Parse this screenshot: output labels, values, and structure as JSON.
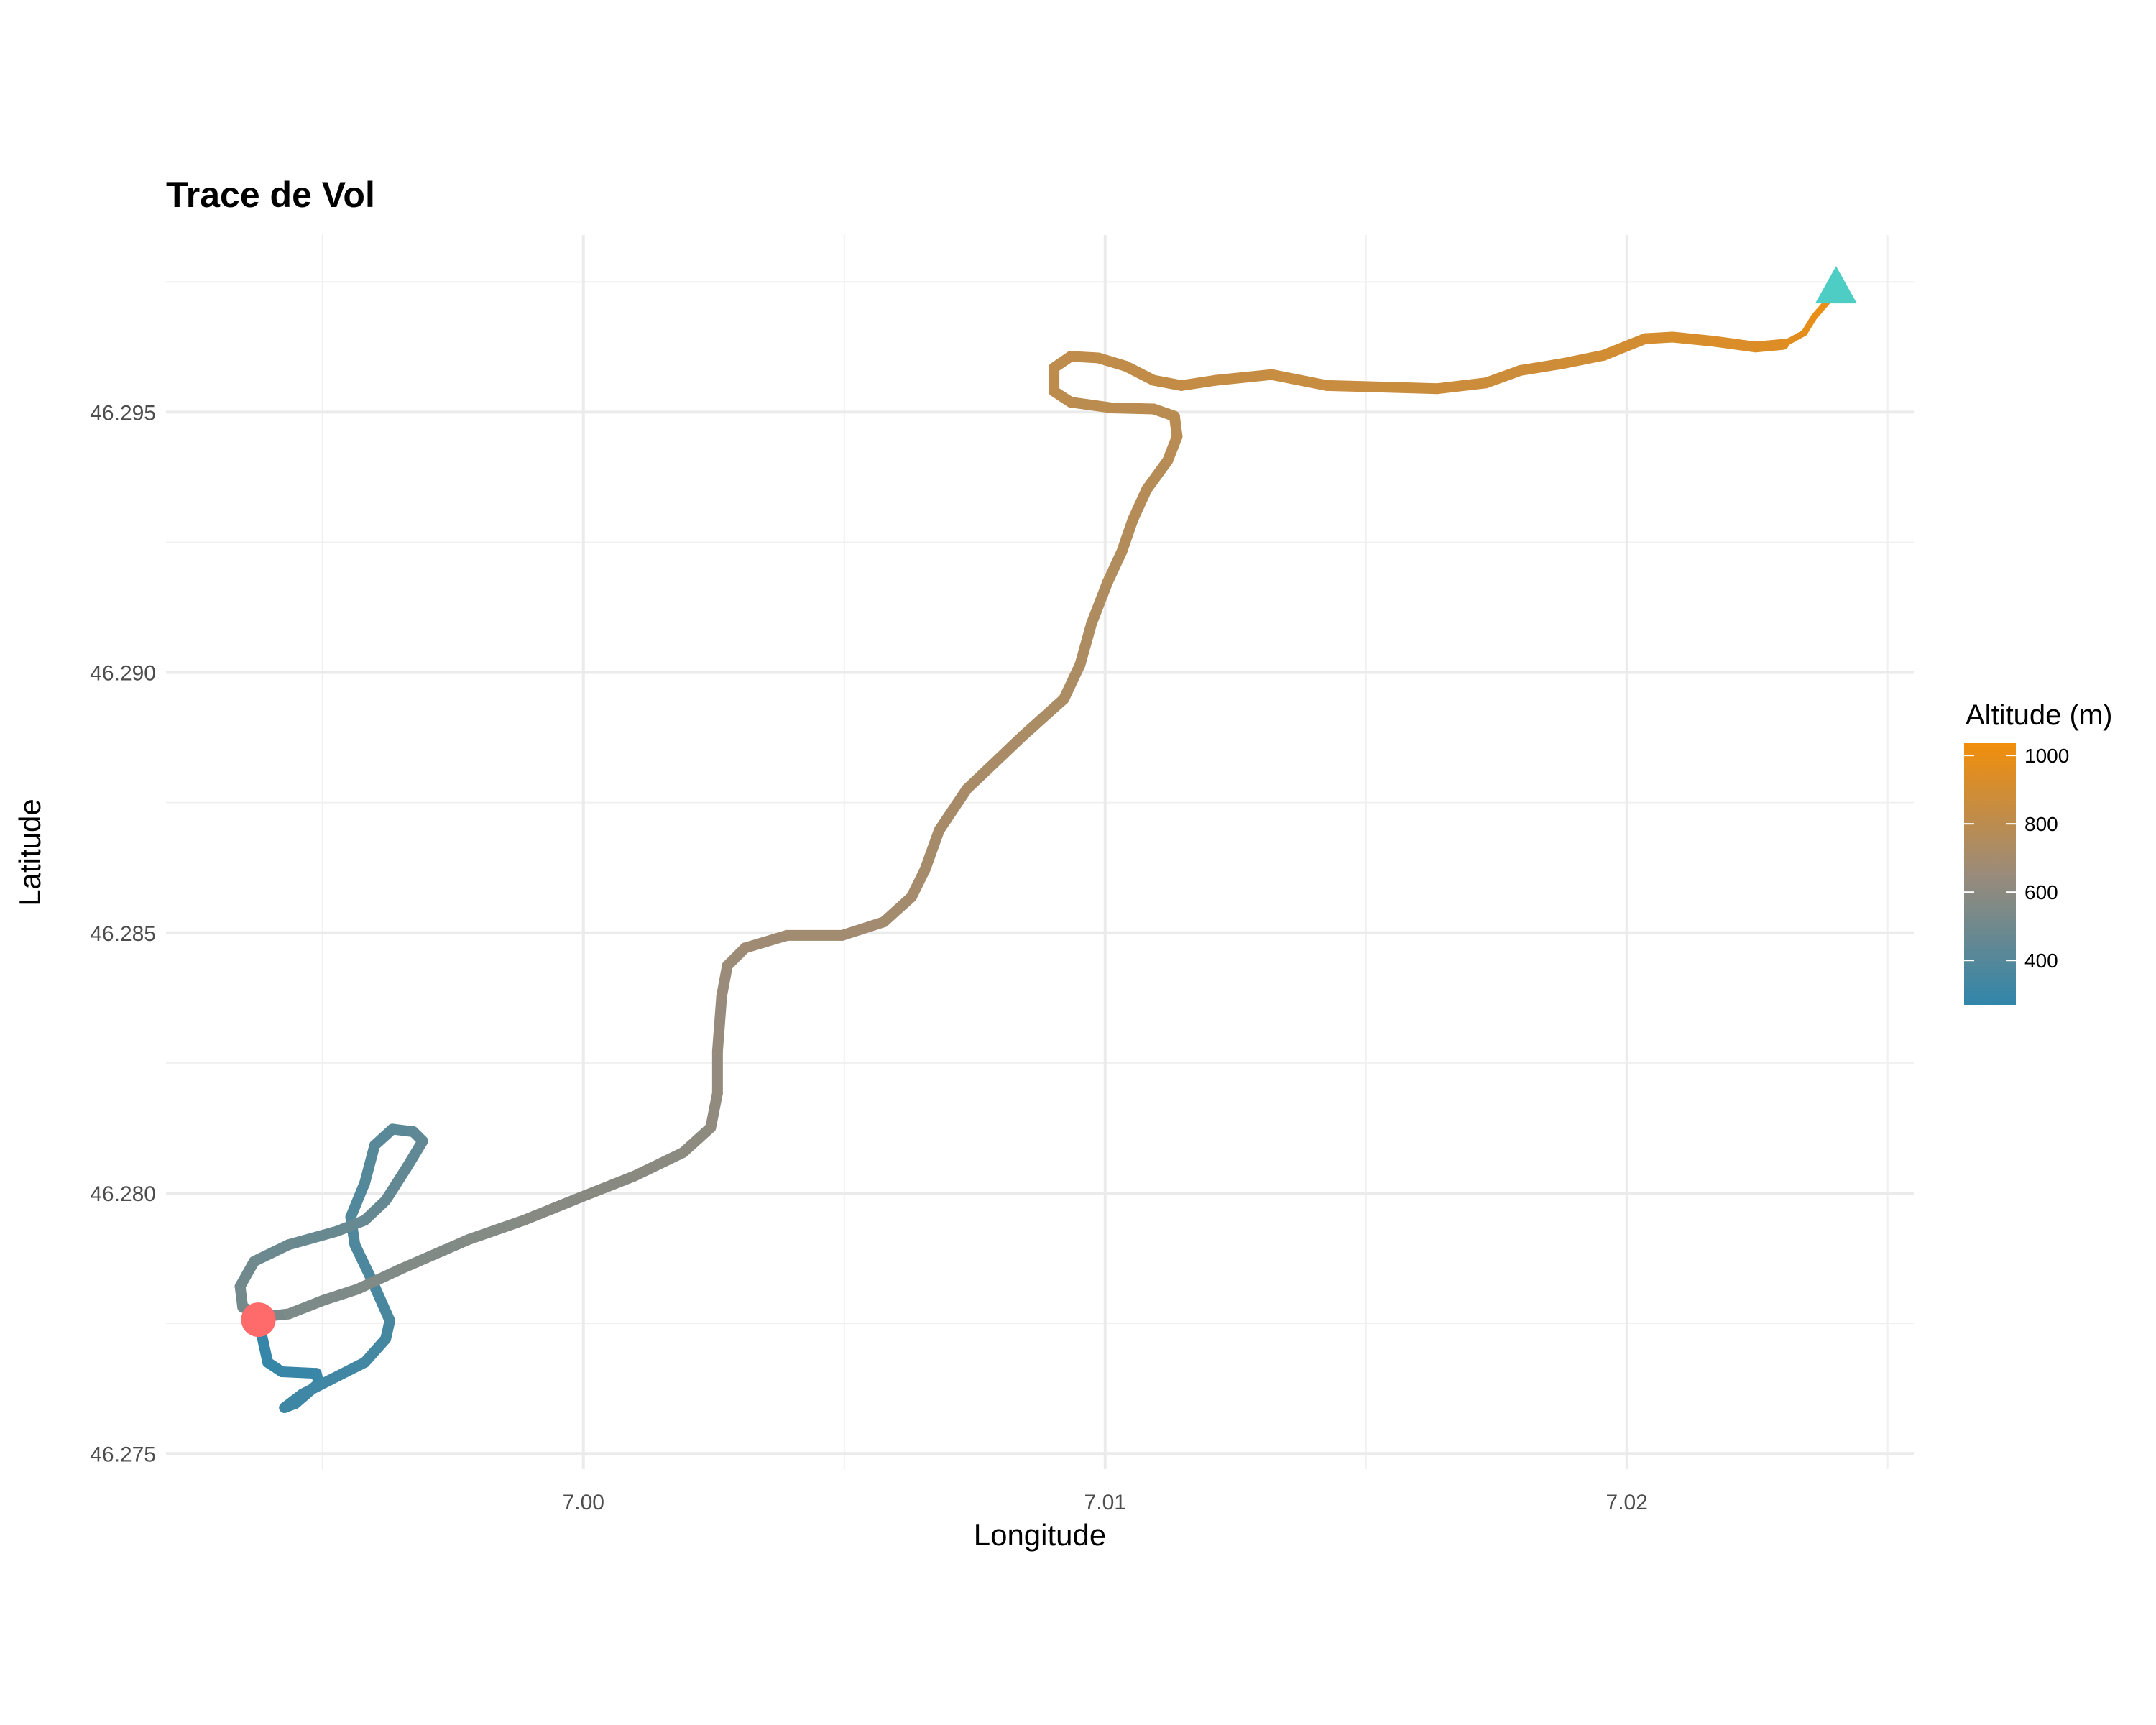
{
  "chart_data": {
    "type": "line",
    "title": "Trace de Vol",
    "xlabel": "Longitude",
    "ylabel": "Latitude",
    "xlim": [
      6.992,
      7.0255
    ],
    "ylim": [
      46.2747,
      46.2984
    ],
    "x_ticks": [
      7.0,
      7.01,
      7.02
    ],
    "x_tick_labels": [
      "7.00",
      "7.01",
      "7.02"
    ],
    "y_ticks": [
      46.275,
      46.28,
      46.285,
      46.29,
      46.295
    ],
    "y_tick_labels": [
      "46.275",
      "46.280",
      "46.285",
      "46.290",
      "46.295"
    ],
    "grid": true,
    "color_scale": {
      "title": "Altitude (m)",
      "limits": [
        270,
        1036
      ],
      "ticks": [
        400,
        600,
        800,
        1000
      ],
      "tick_labels": [
        "400",
        "600",
        "800",
        "1000"
      ],
      "colors": [
        "#3186AA",
        "#9A8B7A",
        "#F28E0A"
      ],
      "legend_position": "right"
    },
    "track": {
      "lon": [
        6.99377,
        6.99395,
        6.99422,
        6.99488,
        6.99493,
        6.99448,
        6.99427,
        6.99461,
        6.99514,
        6.99581,
        6.99621,
        6.99629,
        6.99594,
        6.99562,
        6.99554,
        6.99581,
        6.996,
        6.99634,
        6.99674,
        6.99692,
        6.9966,
        6.99621,
        6.99581,
        6.99528,
        6.99435,
        6.99369,
        6.99342,
        6.99347,
        6.99387,
        6.99435,
        6.99501,
        6.99568,
        6.99647,
        6.9978,
        6.99886,
        6.99992,
        7.00098,
        7.00191,
        7.00244,
        7.00257,
        7.00257,
        7.00265,
        7.00276,
        7.0031,
        7.0039,
        7.00496,
        7.00576,
        7.00629,
        7.00655,
        7.00682,
        7.00735,
        7.00841,
        7.00921,
        7.00952,
        7.00974,
        7.01005,
        7.01032,
        7.01053,
        7.0108,
        7.0112,
        7.01138,
        7.01133,
        7.01093,
        7.01013,
        7.00934,
        7.00902,
        7.00902,
        7.00934,
        7.00987,
        7.0104,
        7.01093,
        7.01146,
        7.01212,
        7.01319,
        7.01425,
        7.01531,
        7.01637,
        7.0173,
        7.01796,
        7.01876,
        7.01955,
        7.02035,
        7.02088,
        7.02167,
        7.02247,
        7.023,
        7.0234,
        7.02359,
        7.02385
      ],
      "lat": [
        46.27757,
        46.27675,
        46.27657,
        46.27654,
        46.27635,
        46.27596,
        46.27588,
        46.27614,
        46.27641,
        46.27675,
        46.2772,
        46.27755,
        46.27834,
        46.27901,
        46.27954,
        46.2802,
        46.28092,
        46.28123,
        46.28118,
        46.281,
        46.28047,
        46.27986,
        46.27948,
        46.27927,
        46.27901,
        46.27869,
        46.27821,
        46.27781,
        46.27763,
        46.27768,
        46.27794,
        46.27816,
        46.27853,
        46.27911,
        46.27948,
        46.27991,
        46.28033,
        46.28078,
        46.28126,
        46.28192,
        46.28272,
        46.28378,
        46.28437,
        46.28471,
        46.28495,
        46.28495,
        46.28521,
        46.28569,
        46.28622,
        46.28697,
        46.28776,
        46.28877,
        46.28949,
        46.29015,
        46.29094,
        46.29174,
        46.29232,
        46.29293,
        46.29352,
        46.29407,
        46.29453,
        46.29492,
        46.29506,
        46.29508,
        46.29519,
        46.2954,
        46.29585,
        46.29607,
        46.29604,
        46.29588,
        46.29561,
        46.29551,
        46.29561,
        46.29572,
        46.29551,
        46.29548,
        46.29545,
        46.29556,
        46.2958,
        46.29593,
        46.29609,
        46.29641,
        46.29644,
        46.29636,
        46.29625,
        46.2963,
        46.29652,
        46.29683,
        46.29713
      ],
      "altitude_keypoints": {
        "index": [
          0,
          9,
          17,
          24,
          29,
          37,
          44,
          51,
          59,
          69,
          79,
          85,
          88
        ],
        "altitude": [
          280,
          330,
          420,
          480,
          540,
          600,
          680,
          720,
          780,
          820,
          880,
          950,
          1010
        ]
      }
    },
    "start_marker": {
      "lon": 6.99377,
      "lat": 46.27757,
      "shape": "circle",
      "color": "#FF6B6B"
    },
    "end_marker": {
      "lon": 7.02401,
      "lat": 46.29739,
      "shape": "triangle",
      "color": "#4ECDC4"
    }
  }
}
